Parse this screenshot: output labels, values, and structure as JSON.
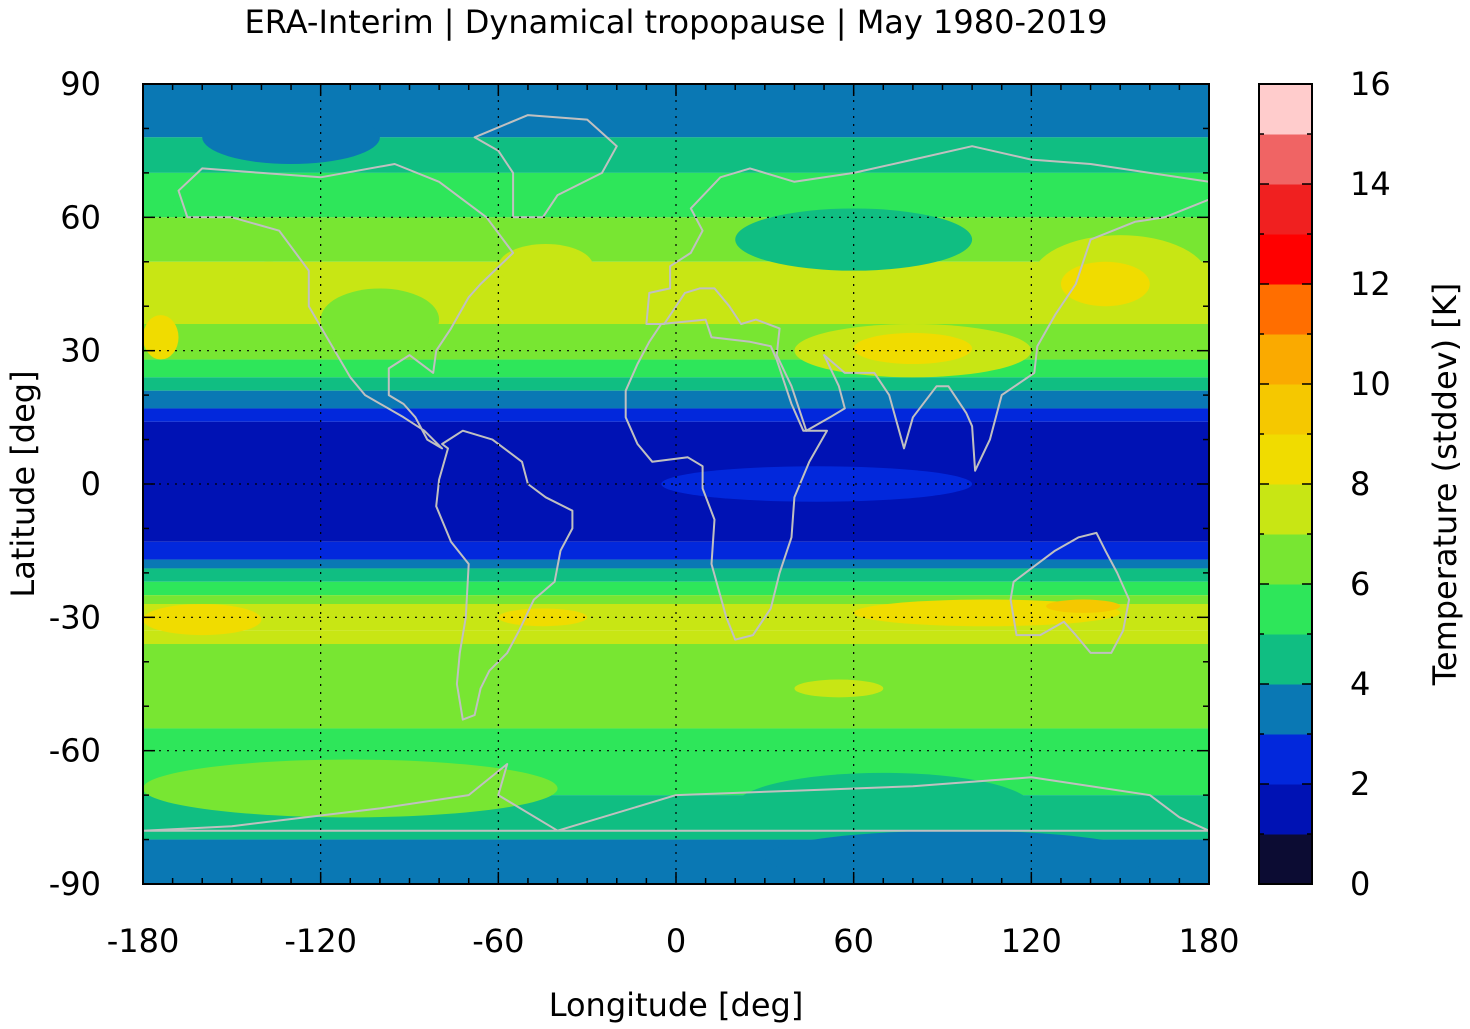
{
  "chart_data": {
    "type": "heatmap",
    "title": "ERA-Interim | Dynamical tropopause | May 1980-2019",
    "xlabel": "Longitude [deg]",
    "ylabel": "Latitude [deg]",
    "xlim": [
      -180,
      180
    ],
    "ylim": [
      -90,
      90
    ],
    "x_ticks": [
      "-180",
      "-120",
      "-60",
      "0",
      "60",
      "120",
      "180"
    ],
    "y_ticks": [
      "90",
      "60",
      "30",
      "0",
      "-30",
      "-60",
      "-90"
    ],
    "grid": true,
    "colorbar": {
      "label": "Temperature (stddev) [K]",
      "range": [
        0,
        16
      ],
      "ticks": [
        "0",
        "2",
        "4",
        "6",
        "8",
        "10",
        "12",
        "14",
        "16"
      ],
      "levels": [
        {
          "from": 0,
          "to": 1,
          "color": "#0c0c33"
        },
        {
          "from": 1,
          "to": 2,
          "color": "#0012b4"
        },
        {
          "from": 2,
          "to": 3,
          "color": "#0228dc"
        },
        {
          "from": 3,
          "to": 4,
          "color": "#0a78b4"
        },
        {
          "from": 4,
          "to": 5,
          "color": "#10be82"
        },
        {
          "from": 5,
          "to": 6,
          "color": "#2ee65a"
        },
        {
          "from": 6,
          "to": 7,
          "color": "#78e632"
        },
        {
          "from": 7,
          "to": 8,
          "color": "#c8e614"
        },
        {
          "from": 8,
          "to": 9,
          "color": "#f0dc00"
        },
        {
          "from": 9,
          "to": 10,
          "color": "#f5c800"
        },
        {
          "from": 10,
          "to": 11,
          "color": "#faaa00"
        },
        {
          "from": 11,
          "to": 12,
          "color": "#ff6e00"
        },
        {
          "from": 12,
          "to": 13,
          "color": "#ff0000"
        },
        {
          "from": 13,
          "to": 14,
          "color": "#f02020"
        },
        {
          "from": 14,
          "to": 15,
          "color": "#f06464"
        },
        {
          "from": 15,
          "to": 16,
          "color": "#ffcccc"
        }
      ]
    },
    "bands": [
      {
        "lat": [
          78,
          90
        ],
        "value": 3.5
      },
      {
        "lat": [
          70,
          78
        ],
        "value": 4.5
      },
      {
        "lat": [
          60,
          70
        ],
        "value": 5.5
      },
      {
        "lat": [
          50,
          60
        ],
        "value": 6.5
      },
      {
        "lat": [
          36,
          50
        ],
        "value": 7.0
      },
      {
        "lat": [
          28,
          36
        ],
        "value": 6.5
      },
      {
        "lat": [
          24,
          28
        ],
        "value": 5.5
      },
      {
        "lat": [
          21,
          24
        ],
        "value": 4.5
      },
      {
        "lat": [
          17,
          21
        ],
        "value": 3.5
      },
      {
        "lat": [
          14,
          17
        ],
        "value": 2.5
      },
      {
        "lat": [
          -13,
          14
        ],
        "value": 1.5
      },
      {
        "lat": [
          -17,
          -13
        ],
        "value": 2.5
      },
      {
        "lat": [
          -19,
          -17
        ],
        "value": 3.5
      },
      {
        "lat": [
          -22,
          -19
        ],
        "value": 4.5
      },
      {
        "lat": [
          -25,
          -22
        ],
        "value": 5.5
      },
      {
        "lat": [
          -27,
          -25
        ],
        "value": 6.5
      },
      {
        "lat": [
          -33,
          -27
        ],
        "value": 7.5
      },
      {
        "lat": [
          -36,
          -33
        ],
        "value": 7.0
      },
      {
        "lat": [
          -55,
          -36
        ],
        "value": 6.5
      },
      {
        "lat": [
          -70,
          -55
        ],
        "value": 5.5
      },
      {
        "lat": [
          -80,
          -70
        ],
        "value": 4.5
      },
      {
        "lat": [
          -90,
          -80
        ],
        "value": 3.5
      }
    ],
    "features": [
      {
        "lon": [
          -180,
          -168
        ],
        "lat": [
          28,
          38
        ],
        "value": 8.5
      },
      {
        "lon": [
          -150,
          -125
        ],
        "lat": [
          38,
          50
        ],
        "value": 7.5
      },
      {
        "lon": [
          -60,
          -28
        ],
        "lat": [
          44,
          54
        ],
        "value": 7.5
      },
      {
        "lon": [
          -180,
          0
        ],
        "lat": [
          60,
          70
        ],
        "value": 5.5
      },
      {
        "lon": [
          -160,
          -100
        ],
        "lat": [
          72,
          84
        ],
        "value": 3.5
      },
      {
        "lon": [
          -120,
          -80
        ],
        "lat": [
          30,
          44
        ],
        "value": 6.0
      },
      {
        "lon": [
          20,
          100
        ],
        "lat": [
          48,
          62
        ],
        "value": 4.5
      },
      {
        "lon": [
          40,
          120
        ],
        "lat": [
          24,
          36
        ],
        "value": 7.5
      },
      {
        "lon": [
          60,
          100
        ],
        "lat": [
          27,
          34
        ],
        "value": 8.5
      },
      {
        "lon": [
          120,
          180
        ],
        "lat": [
          36,
          56
        ],
        "value": 7.5
      },
      {
        "lon": [
          130,
          160
        ],
        "lat": [
          40,
          50
        ],
        "value": 8.5
      },
      {
        "lon": [
          -5,
          100
        ],
        "lat": [
          -4,
          4
        ],
        "value": 2.5
      },
      {
        "lon": [
          -180,
          -140
        ],
        "lat": [
          -34,
          -27
        ],
        "value": 8.5
      },
      {
        "lon": [
          -60,
          -30
        ],
        "lat": [
          -32,
          -28
        ],
        "value": 8.5
      },
      {
        "lon": [
          60,
          150
        ],
        "lat": [
          -32,
          -26
        ],
        "value": 8.5
      },
      {
        "lon": [
          125,
          150
        ],
        "lat": [
          -29,
          -26
        ],
        "value": 9.5
      },
      {
        "lon": [
          40,
          70
        ],
        "lat": [
          -48,
          -44
        ],
        "value": 7.5
      },
      {
        "lon": [
          20,
          120
        ],
        "lat": [
          -80,
          -65
        ],
        "value": 4.5
      },
      {
        "lon": [
          30,
          160
        ],
        "lat": [
          -90,
          -78
        ],
        "value": 3.5
      },
      {
        "lon": [
          -180,
          -40
        ],
        "lat": [
          -75,
          -62
        ],
        "value": 6.0
      }
    ]
  },
  "colors": {
    "frame": "#000000",
    "grid": "#000000",
    "coastline": "#c0c0c0"
  }
}
